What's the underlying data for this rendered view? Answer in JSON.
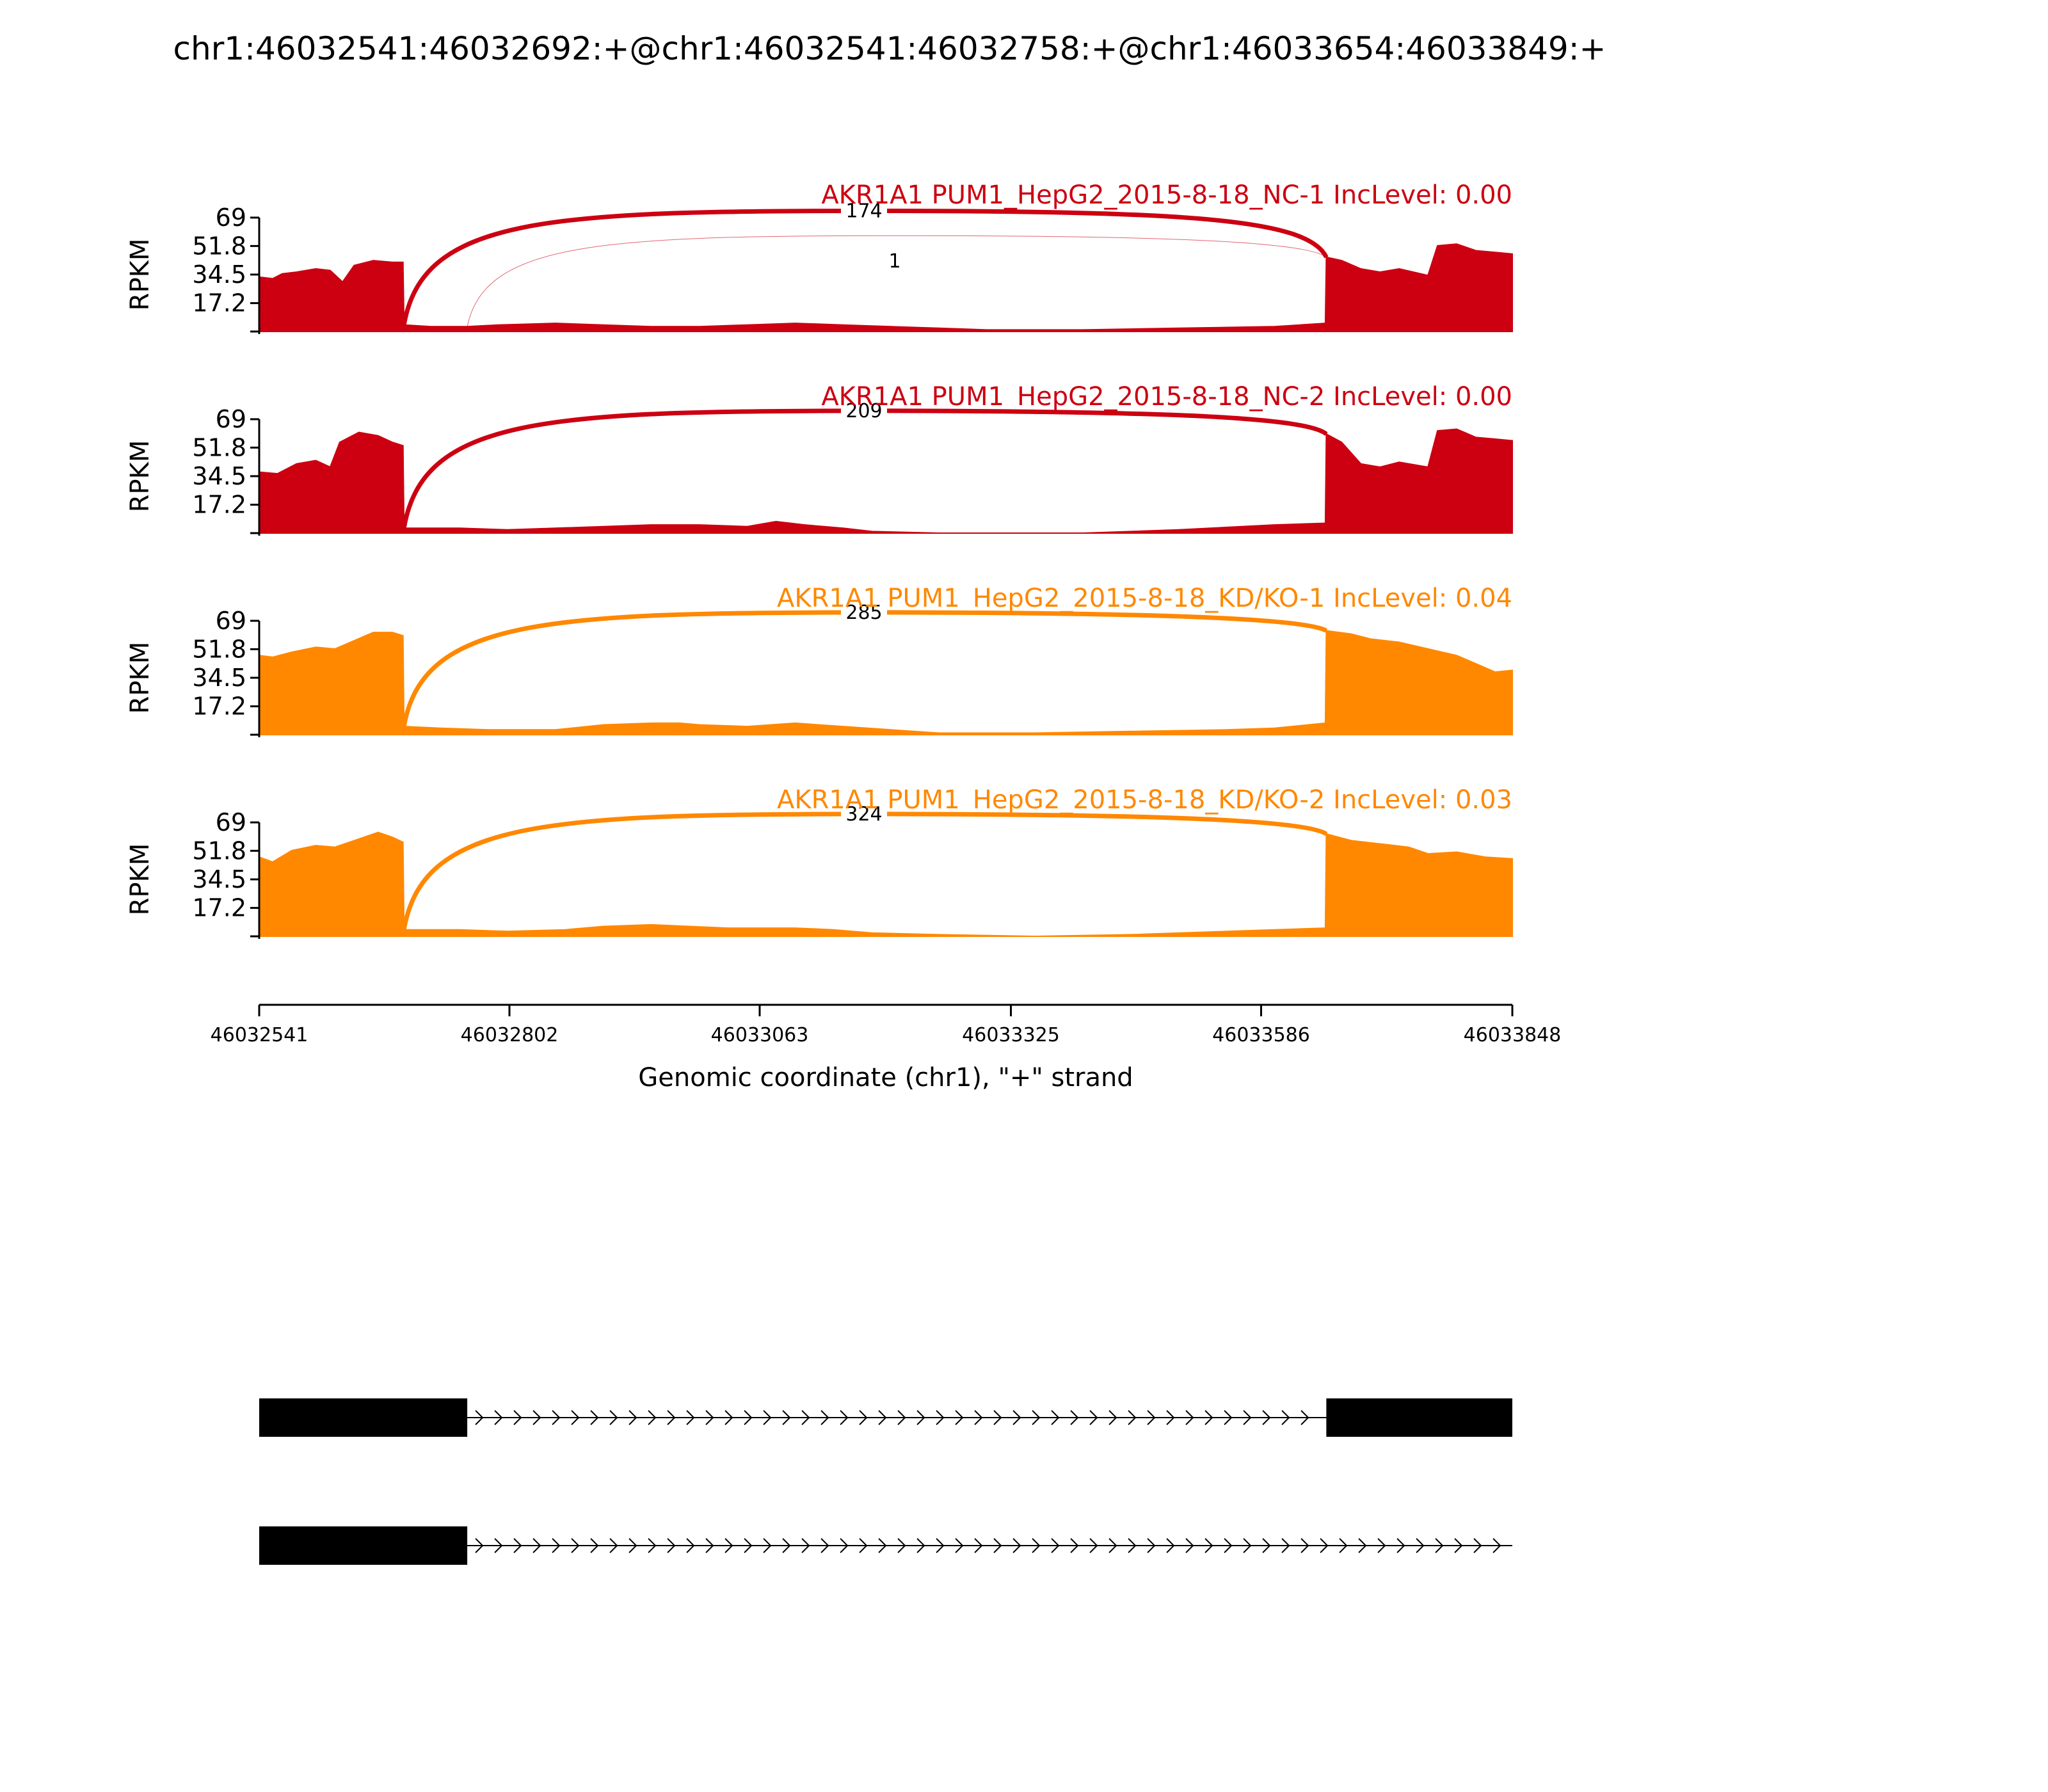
{
  "title": "chr1:46032541:46032692:+@chr1:46032541:46032758:+@chr1:46033654:46033849:+",
  "chart_data": {
    "type": "area",
    "ylabel": "RPKM",
    "ylim": [
      0,
      69
    ],
    "yticks": [
      "69",
      "51.8",
      "34.5",
      "17.2"
    ],
    "xlabel": "Genomic coordinate (chr1), \"+\" strand",
    "xlim": [
      46032541,
      46033848
    ],
    "xticks": [
      "46032541",
      "46032802",
      "46033063",
      "46033325",
      "46033586",
      "46033848"
    ],
    "series": [
      {
        "name": "AKR1A1 PUM1_HepG2_2015-8-18_NC-1 IncLevel: 0.00",
        "color": "#cc0011",
        "junctions": [
          {
            "start": 46032692,
            "end": 46033654,
            "count": "174",
            "height": 63
          },
          {
            "start": 46032758,
            "end": 46033654,
            "count": "1",
            "height": 48
          }
        ],
        "coverage": [
          [
            46032541,
            33
          ],
          [
            46032555,
            32
          ],
          [
            46032565,
            35
          ],
          [
            46032580,
            36
          ],
          [
            46032600,
            38
          ],
          [
            46032615,
            37
          ],
          [
            46032628,
            30
          ],
          [
            46032640,
            40
          ],
          [
            46032660,
            43
          ],
          [
            46032680,
            42
          ],
          [
            46032691,
            42
          ],
          [
            46032692,
            4
          ],
          [
            46032720,
            3
          ],
          [
            46032758,
            3
          ],
          [
            46032790,
            4
          ],
          [
            46032850,
            5
          ],
          [
            46032900,
            4
          ],
          [
            46032950,
            3
          ],
          [
            46033000,
            3
          ],
          [
            46033050,
            4
          ],
          [
            46033100,
            5
          ],
          [
            46033150,
            4
          ],
          [
            46033200,
            3
          ],
          [
            46033250,
            2
          ],
          [
            46033300,
            1
          ],
          [
            46033400,
            1
          ],
          [
            46033500,
            2
          ],
          [
            46033600,
            3
          ],
          [
            46033653,
            5
          ],
          [
            46033654,
            45
          ],
          [
            46033670,
            43
          ],
          [
            46033690,
            38
          ],
          [
            46033710,
            36
          ],
          [
            46033730,
            38
          ],
          [
            46033760,
            34
          ],
          [
            46033770,
            52
          ],
          [
            46033790,
            53
          ],
          [
            46033810,
            49
          ],
          [
            46033830,
            48
          ],
          [
            46033848,
            47
          ]
        ]
      },
      {
        "name": "AKR1A1 PUM1_HepG2_2015-8-18_NC-2 IncLevel: 0.00",
        "color": "#cc0011",
        "junctions": [
          {
            "start": 46032692,
            "end": 46033654,
            "count": "209",
            "height": 64
          }
        ],
        "coverage": [
          [
            46032541,
            37
          ],
          [
            46032560,
            36
          ],
          [
            46032580,
            42
          ],
          [
            46032600,
            44
          ],
          [
            46032615,
            40
          ],
          [
            46032625,
            55
          ],
          [
            46032645,
            61
          ],
          [
            46032665,
            59
          ],
          [
            46032680,
            55
          ],
          [
            46032691,
            53
          ],
          [
            46032692,
            3
          ],
          [
            46032750,
            3
          ],
          [
            46032800,
            2
          ],
          [
            46032850,
            3
          ],
          [
            46032900,
            4
          ],
          [
            46032950,
            5
          ],
          [
            46033000,
            5
          ],
          [
            46033050,
            4
          ],
          [
            46033080,
            7
          ],
          [
            46033110,
            5
          ],
          [
            46033150,
            3
          ],
          [
            46033180,
            1
          ],
          [
            46033250,
            0
          ],
          [
            46033400,
            0
          ],
          [
            46033500,
            2
          ],
          [
            46033600,
            5
          ],
          [
            46033653,
            6
          ],
          [
            46033654,
            60
          ],
          [
            46033670,
            55
          ],
          [
            46033690,
            42
          ],
          [
            46033710,
            40
          ],
          [
            46033730,
            43
          ],
          [
            46033760,
            40
          ],
          [
            46033770,
            62
          ],
          [
            46033790,
            63
          ],
          [
            46033810,
            58
          ],
          [
            46033830,
            57
          ],
          [
            46033848,
            56
          ]
        ]
      },
      {
        "name": "AKR1A1 PUM1_HepG2_2015-8-18_KD/KO-1 IncLevel: 0.04",
        "color": "#ff8800",
        "junctions": [
          {
            "start": 46032692,
            "end": 46033654,
            "count": "285",
            "height": 64
          }
        ],
        "coverage": [
          [
            46032541,
            48
          ],
          [
            46032555,
            47
          ],
          [
            46032575,
            50
          ],
          [
            46032600,
            53
          ],
          [
            46032620,
            52
          ],
          [
            46032640,
            57
          ],
          [
            46032660,
            62
          ],
          [
            46032680,
            62
          ],
          [
            46032691,
            60
          ],
          [
            46032692,
            5
          ],
          [
            46032730,
            4
          ],
          [
            46032780,
            3
          ],
          [
            46032850,
            3
          ],
          [
            46032900,
            6
          ],
          [
            46032950,
            7
          ],
          [
            46032980,
            7
          ],
          [
            46033000,
            6
          ],
          [
            46033050,
            5
          ],
          [
            46033100,
            7
          ],
          [
            46033150,
            5
          ],
          [
            46033200,
            3
          ],
          [
            46033250,
            1
          ],
          [
            46033350,
            1
          ],
          [
            46033450,
            2
          ],
          [
            46033550,
            3
          ],
          [
            46033600,
            4
          ],
          [
            46033653,
            7
          ],
          [
            46033654,
            63
          ],
          [
            46033680,
            61
          ],
          [
            46033700,
            58
          ],
          [
            46033730,
            56
          ],
          [
            46033760,
            52
          ],
          [
            46033790,
            48
          ],
          [
            46033810,
            43
          ],
          [
            46033830,
            38
          ],
          [
            46033848,
            39
          ]
        ]
      },
      {
        "name": "AKR1A1 PUM1_HepG2_2015-8-18_KD/KO-2 IncLevel: 0.03",
        "color": "#ff8800",
        "junctions": [
          {
            "start": 46032692,
            "end": 46033654,
            "count": "324",
            "height": 64
          }
        ],
        "coverage": [
          [
            46032541,
            48
          ],
          [
            46032555,
            45
          ],
          [
            46032575,
            52
          ],
          [
            46032600,
            55
          ],
          [
            46032620,
            54
          ],
          [
            46032640,
            58
          ],
          [
            46032665,
            63
          ],
          [
            46032680,
            60
          ],
          [
            46032691,
            57
          ],
          [
            46032692,
            4
          ],
          [
            46032750,
            4
          ],
          [
            46032800,
            3
          ],
          [
            46032860,
            4
          ],
          [
            46032900,
            6
          ],
          [
            46032950,
            7
          ],
          [
            46032990,
            6
          ],
          [
            46033030,
            5
          ],
          [
            46033060,
            5
          ],
          [
            46033100,
            5
          ],
          [
            46033140,
            4
          ],
          [
            46033180,
            2
          ],
          [
            46033250,
            1
          ],
          [
            46033350,
            0
          ],
          [
            46033450,
            1
          ],
          [
            46033550,
            3
          ],
          [
            46033600,
            4
          ],
          [
            46033653,
            5
          ],
          [
            46033654,
            62
          ],
          [
            46033680,
            58
          ],
          [
            46033710,
            56
          ],
          [
            46033740,
            54
          ],
          [
            46033760,
            50
          ],
          [
            46033790,
            51
          ],
          [
            46033820,
            48
          ],
          [
            46033848,
            47
          ]
        ]
      }
    ],
    "transcripts": [
      {
        "exons": [
          [
            46032541,
            46032758
          ],
          [
            46033654,
            46033848
          ]
        ],
        "intron": [
          46032758,
          46033654
        ]
      },
      {
        "exons": [
          [
            46032541,
            46032758
          ]
        ],
        "intron": [
          46032758,
          46033848
        ]
      }
    ]
  }
}
